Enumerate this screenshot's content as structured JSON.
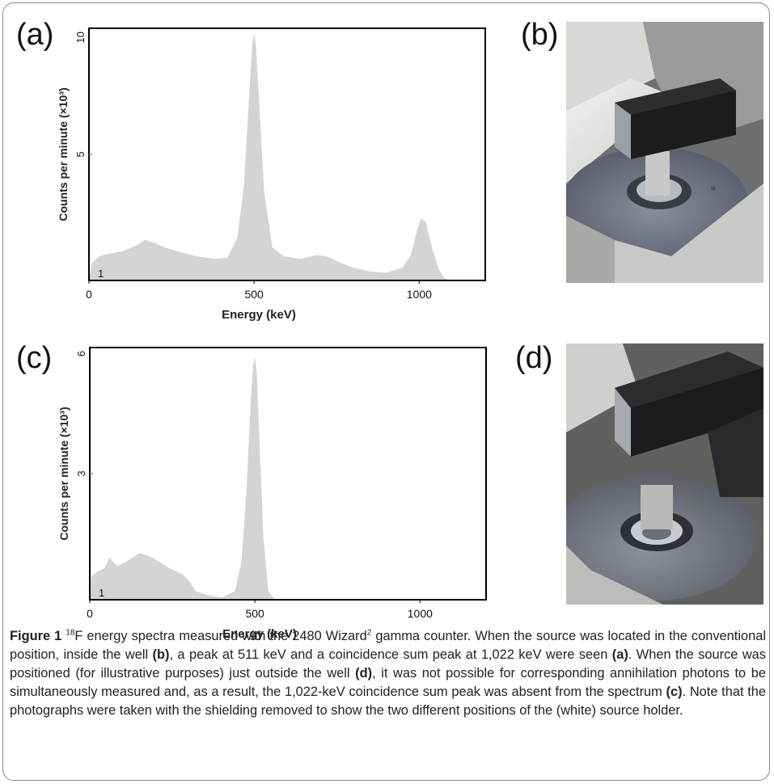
{
  "figure": {
    "panels": [
      {
        "id": "a",
        "label": "(a)"
      },
      {
        "id": "b",
        "label": "(b)"
      },
      {
        "id": "c",
        "label": "(c)"
      },
      {
        "id": "d",
        "label": "(d)"
      }
    ],
    "caption": {
      "figure_label": "Figure 1",
      "isotope_mass": "18",
      "part1": "F energy spectra measured with the 2480 Wizard",
      "superscript2": "2",
      "part2": " gamma counter. When the source was located in the conventional position, inside the well ",
      "ref_b": "(b)",
      "part3": ", a peak at 511 keV and a coincidence sum peak at 1,022 keV were seen ",
      "ref_a": "(a)",
      "part4": ". When the source was positioned (for illustrative purposes) just outside the well ",
      "ref_d": "(d)",
      "part5": ", it was not possible for corresponding annihilation photons to be simultaneously measured and, as a result, the 1,022-keV coincidence sum peak was absent from the spectrum ",
      "ref_c": "(c)",
      "part6": ". Note that the photographs were taken with the shielding removed to show the two different positions of the (white) source holder."
    }
  },
  "colors": {
    "fill": "#d4d4d4",
    "tick_mark": "#d9652a",
    "axis": "#000000",
    "frame_border": "#888888"
  },
  "chart_data": [
    {
      "panel": "a",
      "type": "area",
      "xlabel": "Energy (keV)",
      "ylabel": "Counts per minute (×10³)",
      "xlim": [
        0,
        1200
      ],
      "ylim": [
        0,
        10
      ],
      "x_ticks": [
        {
          "value": 0,
          "label": "0"
        },
        {
          "value": 500,
          "label": "500"
        },
        {
          "value": 1000,
          "label": "1000"
        }
      ],
      "y_ticks": [
        {
          "value": 5,
          "label": "5"
        },
        {
          "value": 10,
          "label": "10"
        }
      ],
      "corner_label": "1",
      "x": [
        0,
        10,
        30,
        60,
        100,
        140,
        170,
        195,
        230,
        280,
        330,
        380,
        420,
        450,
        470,
        485,
        495,
        500,
        505,
        515,
        530,
        555,
        590,
        640,
        690,
        720,
        760,
        800,
        850,
        900,
        950,
        975,
        990,
        1005,
        1020,
        1040,
        1060,
        1075,
        1090
      ],
      "y": [
        0,
        0.7,
        0.95,
        1.05,
        1.15,
        1.35,
        1.6,
        1.5,
        1.3,
        1.1,
        0.95,
        0.85,
        0.9,
        1.7,
        3.8,
        7.2,
        9.3,
        9.75,
        9.3,
        7.0,
        3.5,
        1.3,
        0.95,
        0.85,
        1.0,
        0.95,
        0.7,
        0.5,
        0.35,
        0.3,
        0.5,
        1.0,
        1.8,
        2.45,
        2.3,
        1.2,
        0.4,
        0.1,
        0
      ]
    },
    {
      "panel": "c",
      "type": "area",
      "xlabel": "Energy (keV)",
      "ylabel": "Counts per minute (×10³)",
      "xlim": [
        0,
        1200
      ],
      "ylim": [
        0,
        6
      ],
      "x_ticks": [
        {
          "value": 0,
          "label": "0"
        },
        {
          "value": 500,
          "label": "500"
        },
        {
          "value": 1000,
          "label": "1000"
        }
      ],
      "y_ticks": [
        {
          "value": 3,
          "label": "3"
        },
        {
          "value": 6,
          "label": "6"
        }
      ],
      "corner_label": "1",
      "x": [
        0,
        5,
        20,
        45,
        60,
        70,
        85,
        110,
        150,
        175,
        200,
        240,
        280,
        300,
        320,
        360,
        400,
        440,
        460,
        475,
        487,
        495,
        500,
        505,
        512,
        525,
        540,
        560
      ],
      "y": [
        0,
        0.55,
        0.65,
        0.75,
        1.0,
        0.9,
        0.8,
        0.9,
        1.1,
        1.05,
        0.95,
        0.75,
        0.6,
        0.45,
        0.2,
        0.1,
        0.05,
        0.2,
        0.9,
        2.6,
        4.6,
        5.55,
        5.75,
        5.4,
        4.0,
        1.5,
        0.2,
        0
      ]
    }
  ]
}
